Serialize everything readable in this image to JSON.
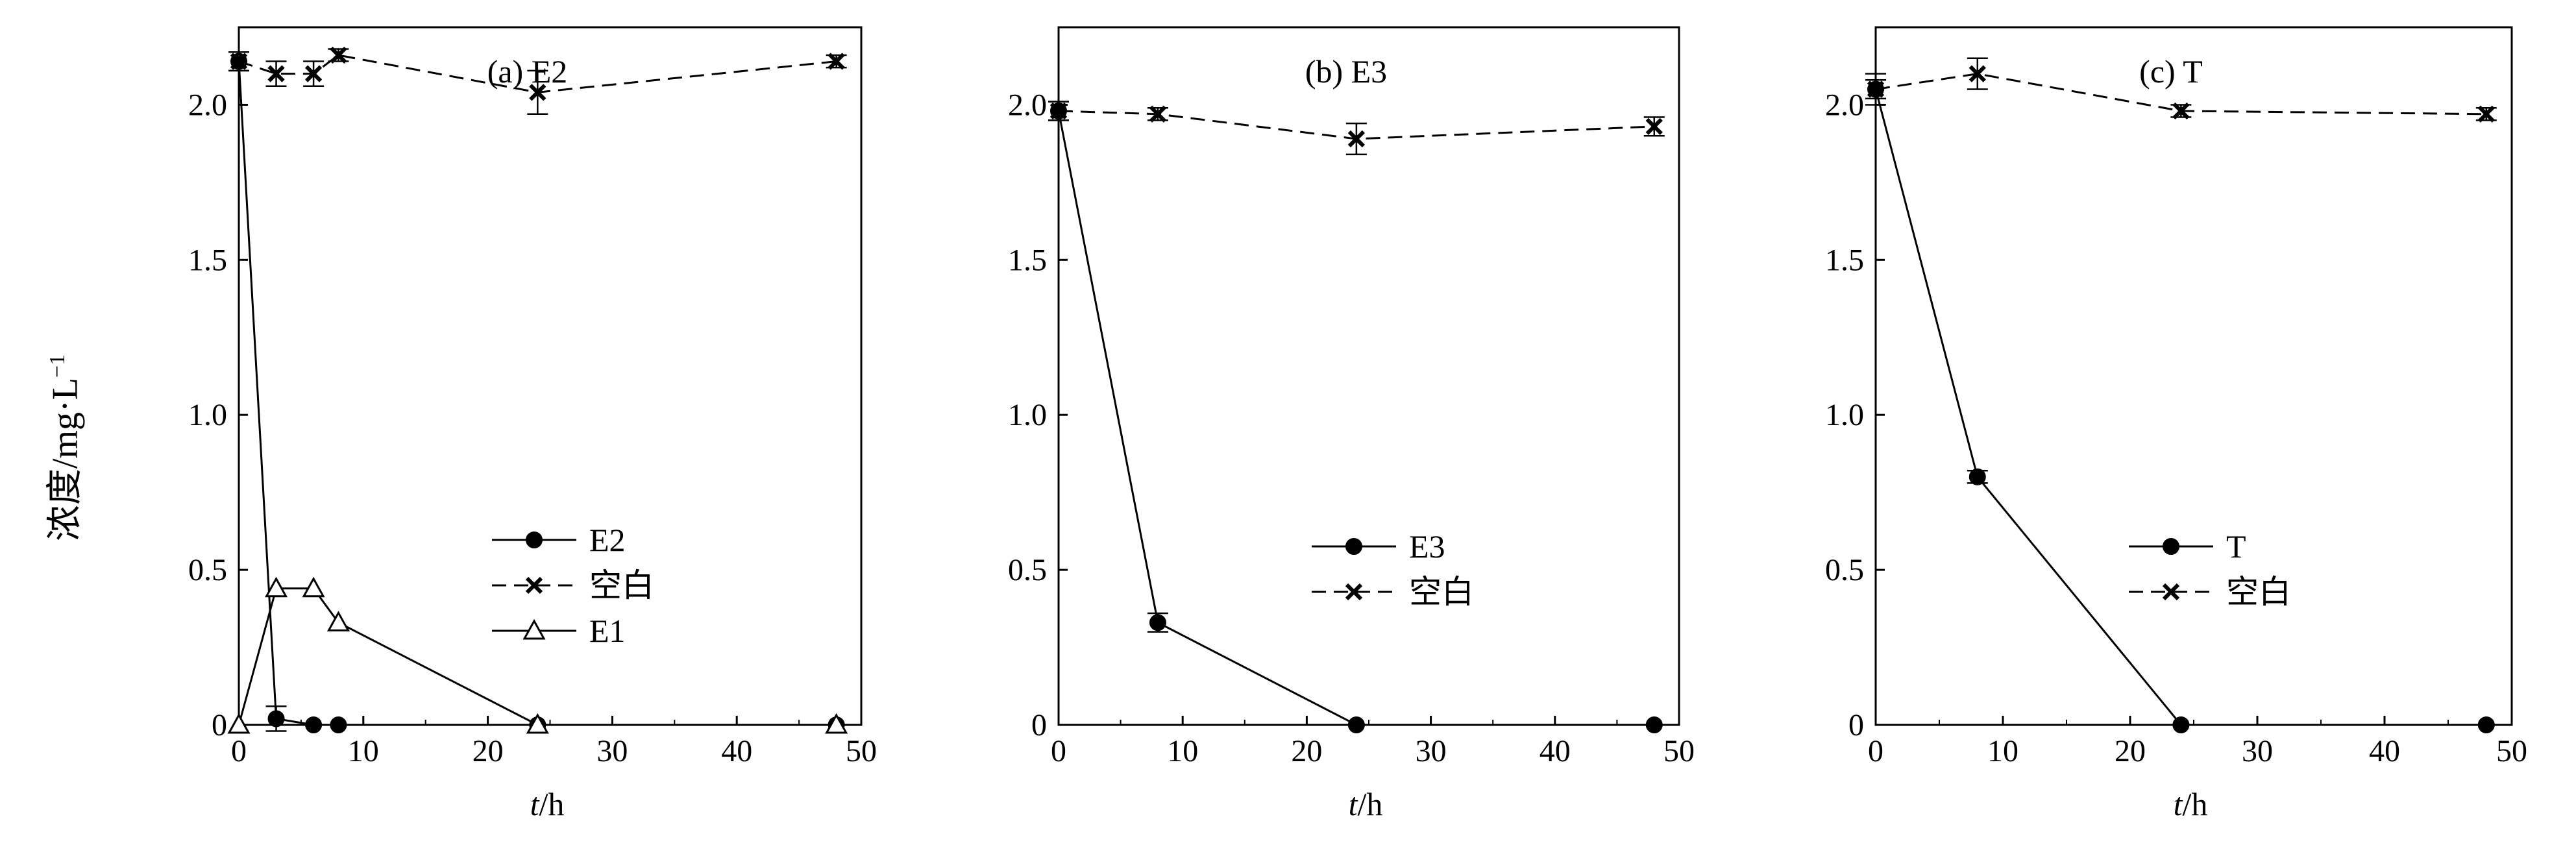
{
  "chart_data": [
    {
      "type": "line",
      "title": "(a) E2",
      "xlabel": "t/h",
      "ylabel": "浓度/mg·L−1",
      "xlim": [
        0,
        50
      ],
      "ylim": [
        0,
        2.25
      ],
      "xticks": [
        "0",
        "10",
        "20",
        "30",
        "40",
        "50"
      ],
      "yticks": [
        "0",
        "0.5",
        "1.0",
        "1.5",
        "2.0"
      ],
      "legend_position": "lower-right",
      "series": [
        {
          "name": "E2",
          "marker": "filled-circle",
          "dash": "solid",
          "x": [
            0,
            3,
            6,
            8,
            24,
            48
          ],
          "y": [
            2.14,
            0.02,
            0.0,
            0.0,
            0.0,
            0.0
          ],
          "err": [
            0.03,
            0.04,
            0,
            0,
            0,
            0
          ]
        },
        {
          "name": "空白",
          "marker": "x",
          "dash": "dashed",
          "x": [
            0,
            3,
            6,
            8,
            24,
            48
          ],
          "y": [
            2.14,
            2.1,
            2.1,
            2.16,
            2.04,
            2.14
          ],
          "err": [
            0.03,
            0.04,
            0.04,
            0.02,
            0.07,
            0.02
          ]
        },
        {
          "name": "E1",
          "marker": "open-triangle",
          "dash": "solid",
          "x": [
            0,
            3,
            6,
            8,
            24,
            48
          ],
          "y": [
            0.0,
            0.44,
            0.44,
            0.33,
            0.0,
            0.0
          ],
          "err": [
            0,
            0,
            0,
            0,
            0,
            0
          ]
        }
      ]
    },
    {
      "type": "line",
      "title": "(b) E3",
      "xlabel": "t/h",
      "xlim": [
        0,
        50
      ],
      "ylim": [
        0,
        2.25
      ],
      "xticks": [
        "0",
        "10",
        "20",
        "30",
        "40",
        "50"
      ],
      "yticks": [
        "0",
        "0.5",
        "1.0",
        "1.5",
        "2.0"
      ],
      "legend_position": "lower-right",
      "series": [
        {
          "name": "E3",
          "marker": "filled-circle",
          "dash": "solid",
          "x": [
            0,
            8,
            24,
            48
          ],
          "y": [
            1.98,
            0.33,
            0.0,
            0.0
          ],
          "err": [
            0.03,
            0.03,
            0,
            0
          ]
        },
        {
          "name": "空白",
          "marker": "x",
          "dash": "dashed",
          "x": [
            0,
            8,
            24,
            48
          ],
          "y": [
            1.98,
            1.97,
            1.89,
            1.93
          ],
          "err": [
            0.03,
            0.02,
            0.05,
            0.03
          ]
        }
      ]
    },
    {
      "type": "line",
      "title": "(c) T",
      "xlabel": "t/h",
      "xlim": [
        0,
        50
      ],
      "ylim": [
        0,
        2.25
      ],
      "xticks": [
        "0",
        "10",
        "20",
        "30",
        "40",
        "50"
      ],
      "yticks": [
        "0",
        "0.5",
        "1.0",
        "1.5",
        "2.0"
      ],
      "legend_position": "lower-right",
      "series": [
        {
          "name": "T",
          "marker": "filled-circle",
          "dash": "solid",
          "x": [
            0,
            8,
            24,
            48
          ],
          "y": [
            2.05,
            0.8,
            0.0,
            0.0
          ],
          "err": [
            0.03,
            0.02,
            0,
            0
          ]
        },
        {
          "name": "空白",
          "marker": "x",
          "dash": "dashed",
          "x": [
            0,
            8,
            24,
            48
          ],
          "y": [
            2.05,
            2.1,
            1.98,
            1.97
          ],
          "err": [
            0.05,
            0.05,
            0.02,
            0.02
          ]
        }
      ]
    }
  ]
}
